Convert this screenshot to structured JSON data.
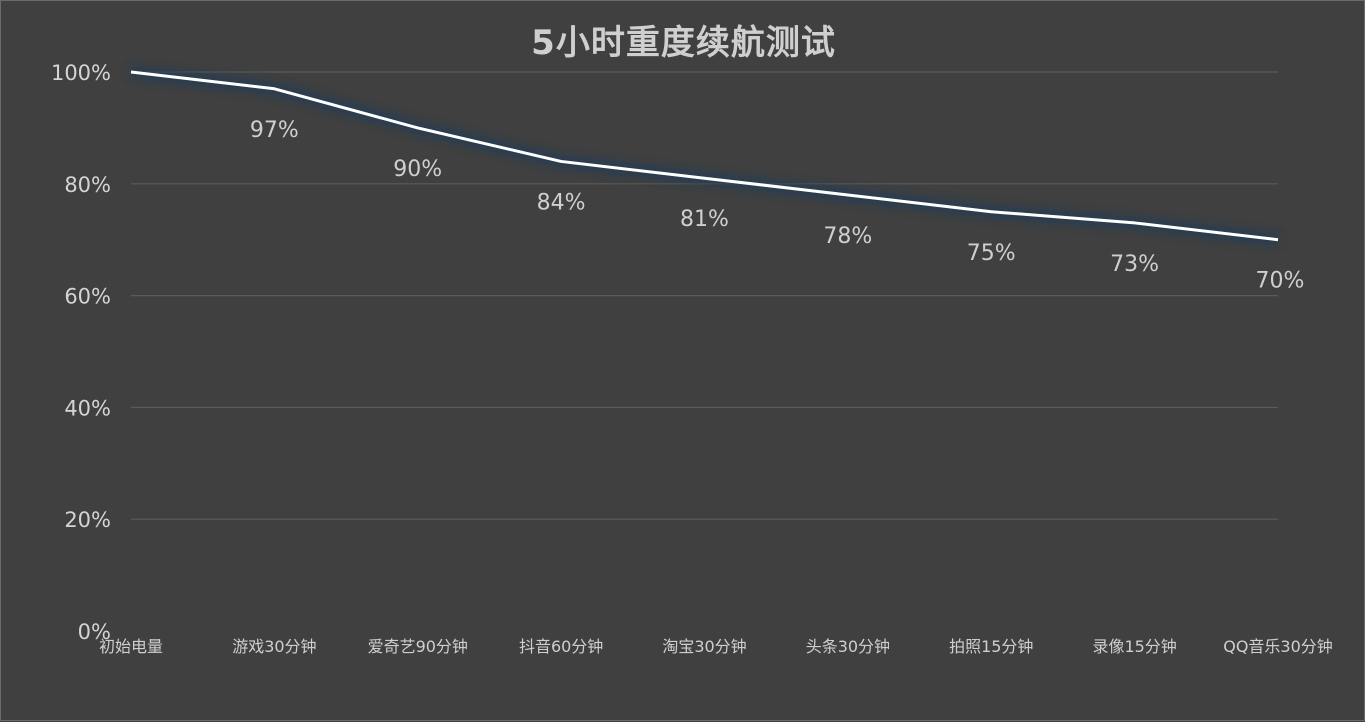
{
  "chart_data": {
    "type": "line",
    "title": "5小时重度续航测试",
    "xlabel": "",
    "ylabel": "",
    "categories": [
      "初始电量",
      "游戏30分钟",
      "爱奇艺90分钟",
      "抖音60分钟",
      "淘宝30分钟",
      "头条30分钟",
      "拍照15分钟",
      "录像15分钟",
      "QQ音乐30分钟"
    ],
    "series": [
      {
        "values": [
          100,
          97,
          90,
          84,
          81,
          78,
          75,
          73,
          70
        ]
      }
    ],
    "data_labels": [
      "",
      "97%",
      "90%",
      "84%",
      "81%",
      "78%",
      "75%",
      "73%",
      "70%"
    ],
    "ylim": [
      0,
      100
    ],
    "yticks": [
      "0%",
      "20%",
      "40%",
      "60%",
      "80%",
      "100%"
    ],
    "grid": true,
    "legend": "none",
    "colors": {
      "background": "#404040",
      "line": "#ffffff",
      "glow": "#1e3a5a",
      "grid": "#5a5a5a",
      "text": "#cfcfcf"
    }
  }
}
